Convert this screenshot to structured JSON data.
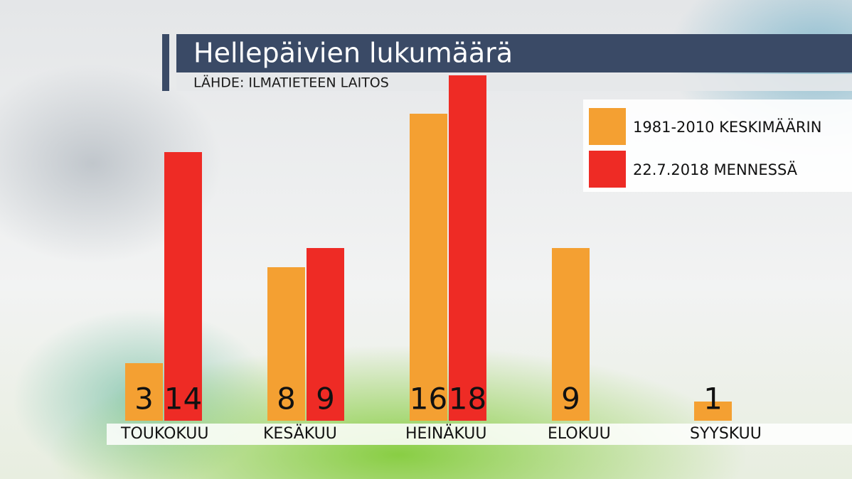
{
  "chart_data": {
    "type": "bar",
    "title": "Hellepäivien lukumäärä",
    "subtitle": "LÄHDE: ILMATIETEEN LAITOS",
    "categories": [
      "TOUKOKUU",
      "KESÄKUU",
      "HEINÄKUU",
      "ELOKUU",
      "SYYSKUU"
    ],
    "series": [
      {
        "name": "1981-2010 KESKIMÄÄRIN",
        "color": "#f4a032",
        "values": [
          3,
          8,
          16,
          9,
          1
        ]
      },
      {
        "name": "22.7.2018 MENNESSÄ",
        "color": "#ee2b25",
        "values": [
          14,
          9,
          18,
          null,
          null
        ]
      }
    ]
  }
}
